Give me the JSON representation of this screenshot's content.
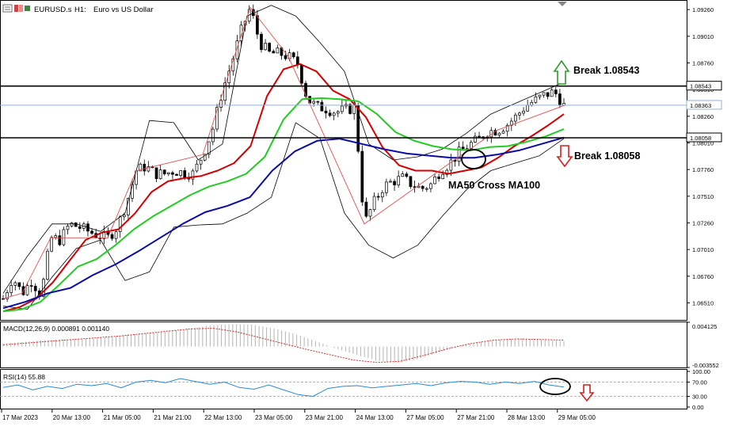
{
  "header": {
    "symbol": "EURUSD.s",
    "timeframe": "H1:",
    "description": "Euro vs US Dollar"
  },
  "colors": {
    "bull_candle": "#000000",
    "bear_candle": "#000000",
    "ma_red": "#d40000",
    "ma_green": "#22cc22",
    "ma_blue": "#0a0aa8",
    "bollinger": "#000000",
    "zigzag": "#e05050",
    "macd_hist": "#b4b4b4",
    "macd_signal": "#d03030",
    "rsi_line": "#2a8ad0",
    "arrow_up": "#2e9a2e",
    "arrow_down": "#d42020"
  },
  "annotations": {
    "break_up_label": "Break 1.08543",
    "break_down_label": "Break 1.08058",
    "cross_label": "MA50 Cross MA100"
  },
  "chart_data": [
    {
      "type": "candlestick",
      "symbol": "EURUSD.s",
      "timeframe": "H1",
      "ylim": [
        1.0635,
        1.0935
      ],
      "y_ticks": [
        "1.09260",
        "1.09010",
        "1.08760",
        "1.08510",
        "1.08260",
        "1.08010",
        "1.07760",
        "1.07510",
        "1.07260",
        "1.07010",
        "1.06760",
        "1.06510"
      ],
      "x_ticks": [
        "17 Mar 2023",
        "20 Mar 13:00",
        "21 Mar 05:00",
        "21 Mar 21:00",
        "22 Mar 13:00",
        "23 Mar 05:00",
        "23 Mar 21:00",
        "24 Mar 13:00",
        "27 Mar 05:00",
        "27 Mar 21:00",
        "28 Mar 13:00",
        "29 Mar 05:00"
      ],
      "horizontal_levels": [
        {
          "value": 1.08543,
          "label": "1.08543"
        },
        {
          "value": 1.08058,
          "label": "1.08058"
        }
      ],
      "current_price": "1.08363",
      "close_path": [
        1.0655,
        1.0675,
        1.066,
        1.0672,
        1.0658,
        1.0712,
        1.071,
        1.0725,
        1.0722,
        1.0718,
        1.0714,
        1.0712,
        1.0722,
        1.0745,
        1.0775,
        1.0779,
        1.0772,
        1.0772,
        1.0775,
        1.0773,
        1.0772,
        1.079,
        1.0812,
        1.0848,
        1.0875,
        1.0905,
        1.0928,
        1.0895,
        1.0885,
        1.0885,
        1.0882,
        1.0875,
        1.0842,
        1.0835,
        1.0833,
        1.083,
        1.0832,
        1.0834,
        1.0725,
        1.0745,
        1.076,
        1.0765,
        1.0768,
        1.0762,
        1.0758,
        1.0762,
        1.0775,
        1.0782,
        1.0792,
        1.0799,
        1.0804,
        1.0812,
        1.0813,
        1.0818,
        1.0826,
        1.0836,
        1.0841,
        1.0846,
        1.0849,
        1.0836
      ],
      "series": [
        {
          "name": "MA50",
          "values": [
            1.0643,
            1.0647,
            1.0655,
            1.067,
            1.069,
            1.071,
            1.0717,
            1.072,
            1.0735,
            1.0755,
            1.0765,
            1.0768,
            1.077,
            1.0775,
            1.0782,
            1.0798,
            1.0845,
            1.087,
            1.0875,
            1.0868,
            1.085,
            1.0842,
            1.0825,
            1.0797,
            1.078,
            1.0775,
            1.0775,
            1.0772,
            1.0775,
            1.0778,
            1.0787,
            1.0798,
            1.0807,
            1.0817,
            1.0828
          ]
        },
        {
          "name": "MA100",
          "values": [
            1.0643,
            1.0645,
            1.0652,
            1.0668,
            1.0685,
            1.0692,
            1.0705,
            1.072,
            1.0732,
            1.0742,
            1.0752,
            1.076,
            1.0765,
            1.0772,
            1.0788,
            1.0823,
            1.0842,
            1.0843,
            1.0842,
            1.084,
            1.0828,
            1.0811,
            1.0803,
            1.0798,
            1.0795,
            1.0794,
            1.0797,
            1.0798,
            1.0802,
            1.0807,
            1.0814
          ]
        },
        {
          "name": "MA200",
          "values": [
            1.0646,
            1.0652,
            1.066,
            1.0665,
            1.0677,
            1.0687,
            1.0699,
            1.0712,
            1.0725,
            1.0736,
            1.0742,
            1.075,
            1.0775,
            1.0793,
            1.0803,
            1.0805,
            1.08,
            1.0795,
            1.0791,
            1.0789,
            1.0787,
            1.0787,
            1.079,
            1.0794,
            1.08,
            1.0806
          ]
        },
        {
          "name": "Bollinger upper",
          "values": [
            1.066,
            1.0695,
            1.0725,
            1.0725,
            1.0718,
            1.0735,
            1.0822,
            1.082,
            1.0785,
            1.08,
            1.092,
            1.093,
            1.092,
            1.0895,
            1.0868,
            1.08,
            1.0785,
            1.0788,
            1.0795,
            1.081,
            1.0828,
            1.0838,
            1.0848,
            1.0858
          ]
        },
        {
          "name": "Bollinger lower",
          "values": [
            1.0648,
            1.0645,
            1.0675,
            1.0702,
            1.071,
            1.0672,
            1.068,
            1.0722,
            1.0724,
            1.0725,
            1.0735,
            1.075,
            1.082,
            1.0805,
            1.0735,
            1.0705,
            1.0693,
            1.0705,
            1.0732,
            1.0757,
            1.0775,
            1.0782,
            1.0789,
            1.0805
          ]
        }
      ]
    },
    {
      "type": "bar",
      "title": "MACD(12,26,9) 0.000891 0.001140",
      "y_ticks": [
        "0.004125",
        "-0.003552"
      ],
      "histogram": [
        0.0005,
        0.0008,
        0.0011,
        0.0012,
        0.0014,
        0.0016,
        0.002,
        0.0023,
        0.0026,
        0.0031,
        0.0036,
        0.0038,
        0.0037,
        0.0031,
        0.0022,
        0.001,
        -0.0003,
        -0.0014,
        -0.0024,
        -0.0028,
        -0.0021,
        -0.001,
        0.0002,
        0.0008,
        0.0012,
        0.0014,
        0.0011,
        0.0009
      ],
      "signal": [
        0.0003,
        0.0006,
        0.0009,
        0.0012,
        0.0015,
        0.0018,
        0.0022,
        0.0026,
        0.003,
        0.0031,
        0.0025,
        0.0015,
        0.0005,
        -0.0005,
        -0.0014,
        -0.0023,
        -0.0027,
        -0.0025,
        -0.0015,
        -0.0004,
        0.0005,
        0.0011,
        0.0013,
        0.0012,
        0.0011
      ]
    },
    {
      "type": "line",
      "title": "RSI(14) 55.88",
      "ylim": [
        0,
        100
      ],
      "y_ticks": [
        "100.00",
        "70.00",
        "30.00",
        "0.00"
      ],
      "levels": [
        70,
        30
      ],
      "values": [
        55,
        62,
        48,
        58,
        52,
        64,
        60,
        66,
        54,
        70,
        75,
        68,
        80,
        72,
        64,
        70,
        55,
        50,
        62,
        48,
        35,
        30,
        52,
        58,
        60,
        54,
        58,
        62,
        66,
        60,
        68,
        72,
        70,
        64,
        70,
        66,
        72,
        62,
        56
      ]
    }
  ]
}
